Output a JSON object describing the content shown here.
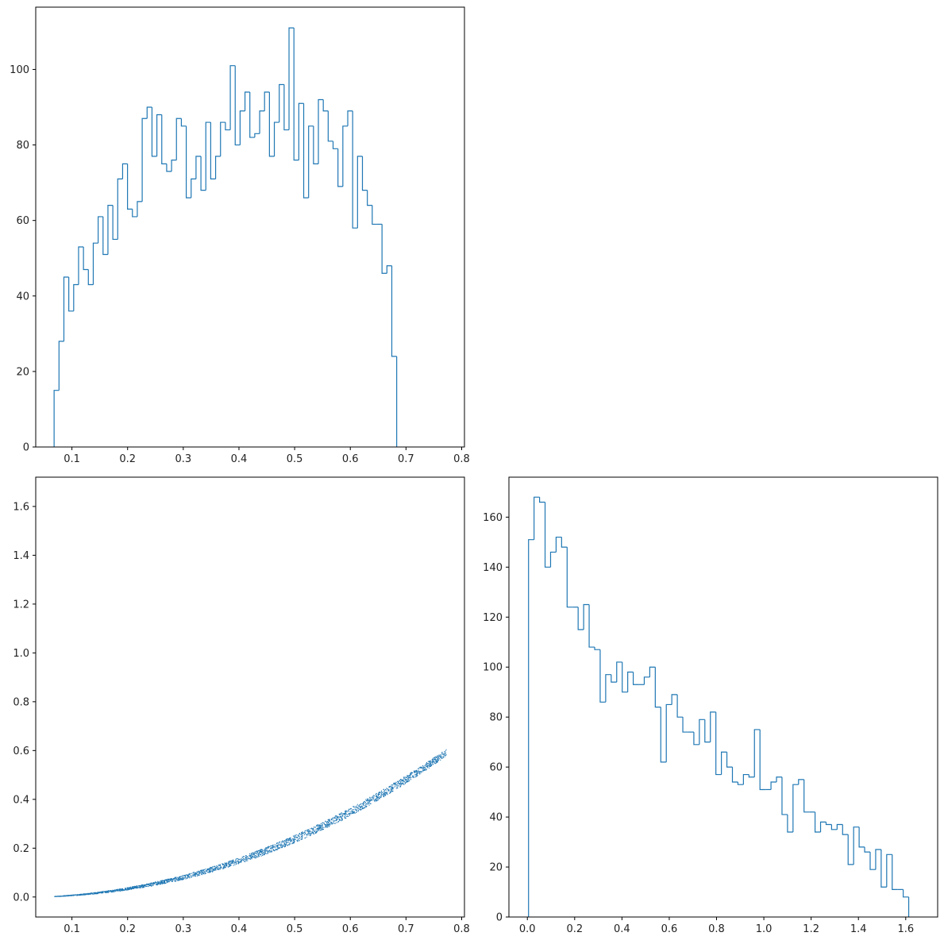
{
  "colors": {
    "series": "#1f77b4",
    "axes": "#000000",
    "background": "#ffffff"
  },
  "chart_data": [
    {
      "type": "histogram",
      "panel": "top-left",
      "style": "step",
      "bin_start": 0.068,
      "bin_width": 0.00879,
      "counts": [
        15,
        28,
        45,
        36,
        43,
        53,
        47,
        43,
        54,
        61,
        51,
        64,
        55,
        71,
        75,
        63,
        61,
        65,
        87,
        90,
        77,
        88,
        75,
        73,
        76,
        87,
        85,
        66,
        71,
        77,
        68,
        86,
        71,
        77,
        86,
        84,
        101,
        80,
        89,
        94,
        82,
        83,
        89,
        94,
        77,
        86,
        96,
        84,
        111,
        76,
        91,
        66,
        85,
        75,
        92,
        89,
        81,
        79,
        69,
        85,
        89,
        58,
        77,
        68,
        64,
        59,
        59,
        46,
        48,
        24
      ],
      "xlim": [
        0.035,
        0.805
      ],
      "ylim": [
        0,
        116.5
      ],
      "xticks": [
        0.1,
        0.2,
        0.3,
        0.4,
        0.5,
        0.6,
        0.7,
        0.8
      ],
      "xtick_labels": [
        "0.1",
        "0.2",
        "0.3",
        "0.4",
        "0.5",
        "0.6",
        "0.7",
        "0.8"
      ],
      "yticks": [
        0,
        20,
        40,
        60,
        80,
        100
      ],
      "ytick_labels": [
        "0",
        "20",
        "40",
        "60",
        "80",
        "100"
      ]
    },
    {
      "type": "scatter",
      "panel": "bottom-left",
      "description_points": "x in [0.068, 0.772], y approx x^2 to x^2.2 band",
      "x_range": [
        0.068,
        0.772
      ],
      "band_lower_exponent": 2.18,
      "band_upper_exponent": 2.0,
      "band_scale": 1.02,
      "n_points": 2600,
      "xlim": [
        0.035,
        0.805
      ],
      "ylim": [
        -0.082,
        1.72
      ],
      "xticks": [
        0.1,
        0.2,
        0.3,
        0.4,
        0.5,
        0.6,
        0.7,
        0.8
      ],
      "xtick_labels": [
        "0.1",
        "0.2",
        "0.3",
        "0.4",
        "0.5",
        "0.6",
        "0.7",
        "0.8"
      ],
      "yticks": [
        0.0,
        0.2,
        0.4,
        0.6,
        0.8,
        1.0,
        1.2,
        1.4,
        1.6
      ],
      "ytick_labels": [
        "0.0",
        "0.2",
        "0.4",
        "0.6",
        "0.8",
        "1.0",
        "1.2",
        "1.4",
        "1.6"
      ]
    },
    {
      "type": "histogram",
      "panel": "bottom-right",
      "style": "step",
      "bin_start": 0.005,
      "bin_width": 0.0233,
      "counts": [
        151,
        168,
        166,
        140,
        146,
        152,
        148,
        124,
        124,
        115,
        125,
        108,
        107,
        86,
        97,
        94,
        102,
        90,
        98,
        93,
        93,
        96,
        100,
        84,
        62,
        85,
        89,
        80,
        74,
        74,
        69,
        79,
        70,
        82,
        57,
        66,
        60,
        54,
        53,
        57,
        56,
        75,
        51,
        51,
        54,
        56,
        41,
        34,
        53,
        55,
        42,
        42,
        34,
        38,
        37,
        35,
        37,
        33,
        21,
        36,
        28,
        26,
        19,
        27,
        12,
        25,
        11,
        11,
        8
      ],
      "xlim": [
        -0.078,
        1.735
      ],
      "ylim": [
        0,
        176
      ],
      "xticks": [
        0.0,
        0.2,
        0.4,
        0.6,
        0.8,
        1.0,
        1.2,
        1.4,
        1.6
      ],
      "xtick_labels": [
        "0.0",
        "0.2",
        "0.4",
        "0.6",
        "0.8",
        "1.0",
        "1.2",
        "1.4",
        "1.6"
      ],
      "yticks": [
        0,
        20,
        40,
        60,
        80,
        100,
        120,
        140,
        160
      ],
      "ytick_labels": [
        "0",
        "20",
        "40",
        "60",
        "80",
        "100",
        "120",
        "140",
        "160"
      ]
    }
  ]
}
